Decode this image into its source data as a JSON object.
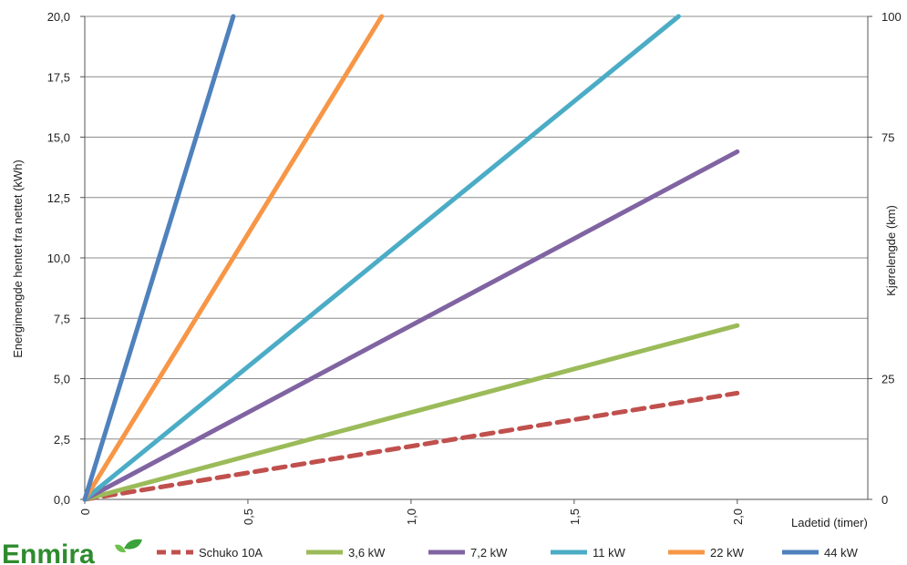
{
  "chart_data": {
    "type": "line",
    "xlabel": "Ladetid (timer)",
    "ylabel": "Energimengde hentet fra nettet (kWh)",
    "y2label": "Kjørelengde (km)",
    "xlim": [
      0,
      2.4
    ],
    "ylim": [
      0,
      20
    ],
    "y2lim": [
      0,
      100
    ],
    "x_ticks": [
      "0",
      "0,5",
      "1,0",
      "1,5",
      "2,0"
    ],
    "y_ticks": [
      "0,0",
      "2,5",
      "5,0",
      "7,5",
      "10,0",
      "12,5",
      "15,0",
      "17,5",
      "20,0"
    ],
    "y2_ticks": [
      "0",
      "25",
      "75",
      "100"
    ],
    "grid": "horizontal",
    "legend_position": "bottom",
    "series": [
      {
        "name": "Schuko 10A",
        "color": "#c0504d",
        "dashed": true,
        "x": [
          0,
          2.0
        ],
        "y": [
          0,
          4.4
        ]
      },
      {
        "name": "3,6 kW",
        "color": "#9bbb59",
        "dashed": false,
        "x": [
          0,
          2.0
        ],
        "y": [
          0,
          7.2
        ]
      },
      {
        "name": "7,2 kW",
        "color": "#8064a2",
        "dashed": false,
        "x": [
          0,
          2.0
        ],
        "y": [
          0,
          14.4
        ]
      },
      {
        "name": "11 kW",
        "color": "#4bacc6",
        "dashed": false,
        "x": [
          0,
          1.82
        ],
        "y": [
          0,
          20
        ]
      },
      {
        "name": "22 kW",
        "color": "#f79646",
        "dashed": false,
        "x": [
          0,
          0.91
        ],
        "y": [
          0,
          20
        ]
      },
      {
        "name": "44 kW",
        "color": "#4f81bd",
        "dashed": false,
        "x": [
          0,
          0.455
        ],
        "y": [
          0,
          20
        ]
      }
    ]
  },
  "logo": {
    "text": "Enmira"
  }
}
